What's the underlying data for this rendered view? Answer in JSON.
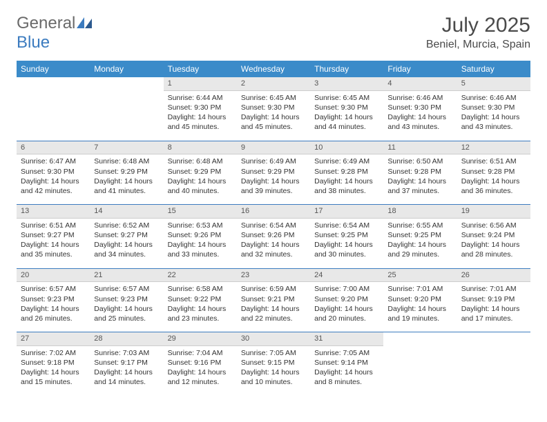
{
  "brand": {
    "part1": "General",
    "part2": "Blue"
  },
  "title": "July 2025",
  "location": "Beniel, Murcia, Spain",
  "colors": {
    "header_bg": "#3b8bc9",
    "header_text": "#ffffff",
    "daynum_bg": "#e8e8e8",
    "separator": "#3b7bbf",
    "logo_gray": "#6a6a6a",
    "logo_blue": "#3b7bbf",
    "body_text": "#333333"
  },
  "weekdays": [
    "Sunday",
    "Monday",
    "Tuesday",
    "Wednesday",
    "Thursday",
    "Friday",
    "Saturday"
  ],
  "weeks": [
    [
      null,
      null,
      {
        "n": "1",
        "sr": "6:44 AM",
        "ss": "9:30 PM",
        "dl": "14 hours and 45 minutes."
      },
      {
        "n": "2",
        "sr": "6:45 AM",
        "ss": "9:30 PM",
        "dl": "14 hours and 45 minutes."
      },
      {
        "n": "3",
        "sr": "6:45 AM",
        "ss": "9:30 PM",
        "dl": "14 hours and 44 minutes."
      },
      {
        "n": "4",
        "sr": "6:46 AM",
        "ss": "9:30 PM",
        "dl": "14 hours and 43 minutes."
      },
      {
        "n": "5",
        "sr": "6:46 AM",
        "ss": "9:30 PM",
        "dl": "14 hours and 43 minutes."
      }
    ],
    [
      {
        "n": "6",
        "sr": "6:47 AM",
        "ss": "9:30 PM",
        "dl": "14 hours and 42 minutes."
      },
      {
        "n": "7",
        "sr": "6:48 AM",
        "ss": "9:29 PM",
        "dl": "14 hours and 41 minutes."
      },
      {
        "n": "8",
        "sr": "6:48 AM",
        "ss": "9:29 PM",
        "dl": "14 hours and 40 minutes."
      },
      {
        "n": "9",
        "sr": "6:49 AM",
        "ss": "9:29 PM",
        "dl": "14 hours and 39 minutes."
      },
      {
        "n": "10",
        "sr": "6:49 AM",
        "ss": "9:28 PM",
        "dl": "14 hours and 38 minutes."
      },
      {
        "n": "11",
        "sr": "6:50 AM",
        "ss": "9:28 PM",
        "dl": "14 hours and 37 minutes."
      },
      {
        "n": "12",
        "sr": "6:51 AM",
        "ss": "9:28 PM",
        "dl": "14 hours and 36 minutes."
      }
    ],
    [
      {
        "n": "13",
        "sr": "6:51 AM",
        "ss": "9:27 PM",
        "dl": "14 hours and 35 minutes."
      },
      {
        "n": "14",
        "sr": "6:52 AM",
        "ss": "9:27 PM",
        "dl": "14 hours and 34 minutes."
      },
      {
        "n": "15",
        "sr": "6:53 AM",
        "ss": "9:26 PM",
        "dl": "14 hours and 33 minutes."
      },
      {
        "n": "16",
        "sr": "6:54 AM",
        "ss": "9:26 PM",
        "dl": "14 hours and 32 minutes."
      },
      {
        "n": "17",
        "sr": "6:54 AM",
        "ss": "9:25 PM",
        "dl": "14 hours and 30 minutes."
      },
      {
        "n": "18",
        "sr": "6:55 AM",
        "ss": "9:25 PM",
        "dl": "14 hours and 29 minutes."
      },
      {
        "n": "19",
        "sr": "6:56 AM",
        "ss": "9:24 PM",
        "dl": "14 hours and 28 minutes."
      }
    ],
    [
      {
        "n": "20",
        "sr": "6:57 AM",
        "ss": "9:23 PM",
        "dl": "14 hours and 26 minutes."
      },
      {
        "n": "21",
        "sr": "6:57 AM",
        "ss": "9:23 PM",
        "dl": "14 hours and 25 minutes."
      },
      {
        "n": "22",
        "sr": "6:58 AM",
        "ss": "9:22 PM",
        "dl": "14 hours and 23 minutes."
      },
      {
        "n": "23",
        "sr": "6:59 AM",
        "ss": "9:21 PM",
        "dl": "14 hours and 22 minutes."
      },
      {
        "n": "24",
        "sr": "7:00 AM",
        "ss": "9:20 PM",
        "dl": "14 hours and 20 minutes."
      },
      {
        "n": "25",
        "sr": "7:01 AM",
        "ss": "9:20 PM",
        "dl": "14 hours and 19 minutes."
      },
      {
        "n": "26",
        "sr": "7:01 AM",
        "ss": "9:19 PM",
        "dl": "14 hours and 17 minutes."
      }
    ],
    [
      {
        "n": "27",
        "sr": "7:02 AM",
        "ss": "9:18 PM",
        "dl": "14 hours and 15 minutes."
      },
      {
        "n": "28",
        "sr": "7:03 AM",
        "ss": "9:17 PM",
        "dl": "14 hours and 14 minutes."
      },
      {
        "n": "29",
        "sr": "7:04 AM",
        "ss": "9:16 PM",
        "dl": "14 hours and 12 minutes."
      },
      {
        "n": "30",
        "sr": "7:05 AM",
        "ss": "9:15 PM",
        "dl": "14 hours and 10 minutes."
      },
      {
        "n": "31",
        "sr": "7:05 AM",
        "ss": "9:14 PM",
        "dl": "14 hours and 8 minutes."
      },
      null,
      null
    ]
  ],
  "labels": {
    "sunrise": "Sunrise:",
    "sunset": "Sunset:",
    "daylight": "Daylight:"
  }
}
